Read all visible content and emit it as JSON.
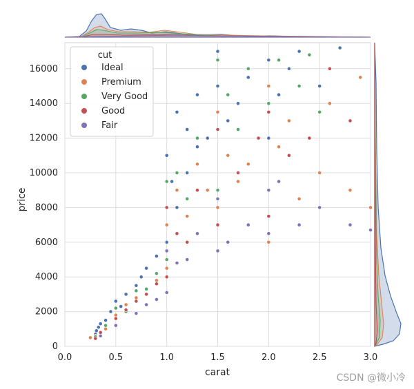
{
  "chart_data": {
    "type": "scatter",
    "title": "",
    "xlabel": "carat",
    "ylabel": "price",
    "xlim": [
      0.0,
      3.0
    ],
    "ylim": [
      0,
      17500
    ],
    "x_ticks": [
      "0.0",
      "0.5",
      "1.0",
      "1.5",
      "2.0",
      "2.5",
      "3.0"
    ],
    "y_ticks": [
      "0",
      "2000",
      "4000",
      "6000",
      "8000",
      "10000",
      "12000",
      "14000",
      "16000"
    ],
    "grid": true,
    "marginals": "kde (top: carat, right: price), per cut",
    "legend": {
      "title": "cut",
      "placement": "top-left",
      "entries": [
        {
          "name": "Ideal",
          "color": "#4c72b0"
        },
        {
          "name": "Premium",
          "color": "#dd8452"
        },
        {
          "name": "Very Good",
          "color": "#55a868"
        },
        {
          "name": "Good",
          "color": "#c44e52"
        },
        {
          "name": "Fair",
          "color": "#8172b3"
        }
      ]
    },
    "series": [
      {
        "name": "Ideal",
        "color": "#4c72b0",
        "points": [
          [
            0.3,
            700
          ],
          [
            0.31,
            900
          ],
          [
            0.33,
            1100
          ],
          [
            0.35,
            1300
          ],
          [
            0.4,
            1500
          ],
          [
            0.45,
            2000
          ],
          [
            0.5,
            2600
          ],
          [
            0.55,
            2300
          ],
          [
            0.6,
            3000
          ],
          [
            0.7,
            3500
          ],
          [
            0.75,
            4000
          ],
          [
            0.8,
            4500
          ],
          [
            0.9,
            5200
          ],
          [
            1.0,
            6000
          ],
          [
            1.0,
            11000
          ],
          [
            1.05,
            9500
          ],
          [
            1.1,
            8000
          ],
          [
            1.1,
            13500
          ],
          [
            1.2,
            10000
          ],
          [
            1.2,
            12500
          ],
          [
            1.3,
            11500
          ],
          [
            1.3,
            14500
          ],
          [
            1.4,
            12000
          ],
          [
            1.5,
            15000
          ],
          [
            1.5,
            17000
          ],
          [
            1.6,
            13000
          ],
          [
            1.7,
            14000
          ],
          [
            1.8,
            15500
          ],
          [
            2.0,
            16500
          ],
          [
            2.0,
            12000
          ],
          [
            2.1,
            14500
          ],
          [
            2.2,
            16000
          ],
          [
            2.3,
            17000
          ],
          [
            2.5,
            15000
          ],
          [
            2.7,
            17200
          ]
        ]
      },
      {
        "name": "Premium",
        "color": "#dd8452",
        "points": [
          [
            0.25,
            500
          ],
          [
            0.3,
            600
          ],
          [
            0.4,
            1000
          ],
          [
            0.5,
            1800
          ],
          [
            0.6,
            2400
          ],
          [
            0.7,
            2800
          ],
          [
            0.9,
            3800
          ],
          [
            1.0,
            4500
          ],
          [
            1.0,
            7000
          ],
          [
            1.1,
            9000
          ],
          [
            1.2,
            7500
          ],
          [
            1.3,
            10500
          ],
          [
            1.4,
            9000
          ],
          [
            1.5,
            8000
          ],
          [
            1.5,
            13500
          ],
          [
            1.6,
            11000
          ],
          [
            1.7,
            9500
          ],
          [
            1.8,
            10500
          ],
          [
            2.0,
            6000
          ],
          [
            2.0,
            15000
          ],
          [
            2.1,
            11500
          ],
          [
            2.2,
            13000
          ],
          [
            2.3,
            8500
          ],
          [
            2.5,
            10000
          ],
          [
            2.6,
            14000
          ],
          [
            2.8,
            9000
          ],
          [
            2.9,
            15500
          ],
          [
            3.0,
            8000
          ]
        ]
      },
      {
        "name": "Very Good",
        "color": "#55a868",
        "points": [
          [
            0.3,
            550
          ],
          [
            0.4,
            1200
          ],
          [
            0.5,
            2200
          ],
          [
            0.6,
            2000
          ],
          [
            0.7,
            3200
          ],
          [
            0.8,
            3300
          ],
          [
            0.9,
            4200
          ],
          [
            1.0,
            5000
          ],
          [
            1.0,
            9500
          ],
          [
            1.1,
            10000
          ],
          [
            1.2,
            8500
          ],
          [
            1.3,
            12000
          ],
          [
            1.5,
            9000
          ],
          [
            1.5,
            16500
          ],
          [
            1.6,
            14500
          ],
          [
            1.7,
            12500
          ],
          [
            1.8,
            16000
          ],
          [
            2.0,
            9000
          ],
          [
            2.0,
            14000
          ],
          [
            2.1,
            16500
          ],
          [
            2.3,
            15000
          ],
          [
            2.5,
            13500
          ],
          [
            2.4,
            16800
          ]
        ]
      },
      {
        "name": "Good",
        "color": "#c44e52",
        "points": [
          [
            0.3,
            450
          ],
          [
            0.35,
            800
          ],
          [
            0.5,
            1600
          ],
          [
            0.6,
            2100
          ],
          [
            0.7,
            2600
          ],
          [
            0.8,
            3000
          ],
          [
            0.9,
            3600
          ],
          [
            1.0,
            4000
          ],
          [
            1.0,
            8000
          ],
          [
            1.1,
            6500
          ],
          [
            1.2,
            6000
          ],
          [
            1.3,
            9000
          ],
          [
            1.5,
            7000
          ],
          [
            1.5,
            12500
          ],
          [
            1.7,
            10000
          ],
          [
            1.9,
            12000
          ],
          [
            2.0,
            7500
          ],
          [
            2.0,
            13500
          ],
          [
            2.2,
            11000
          ],
          [
            2.4,
            12000
          ],
          [
            2.6,
            16000
          ],
          [
            2.8,
            13000
          ]
        ]
      },
      {
        "name": "Fair",
        "color": "#8172b3",
        "points": [
          [
            0.35,
            600
          ],
          [
            0.5,
            1200
          ],
          [
            0.7,
            1900
          ],
          [
            0.8,
            2400
          ],
          [
            0.9,
            2700
          ],
          [
            1.0,
            3100
          ],
          [
            1.0,
            5500
          ],
          [
            1.1,
            4800
          ],
          [
            1.2,
            5000
          ],
          [
            1.3,
            6500
          ],
          [
            1.5,
            5500
          ],
          [
            1.5,
            8500
          ],
          [
            1.6,
            6000
          ],
          [
            1.8,
            7000
          ],
          [
            2.0,
            6500
          ],
          [
            2.0,
            9000
          ],
          [
            2.1,
            9500
          ],
          [
            2.3,
            7000
          ],
          [
            2.5,
            8000
          ],
          [
            2.8,
            7000
          ],
          [
            3.0,
            6700
          ]
        ]
      }
    ]
  },
  "watermark": "CSDN @微小冷"
}
